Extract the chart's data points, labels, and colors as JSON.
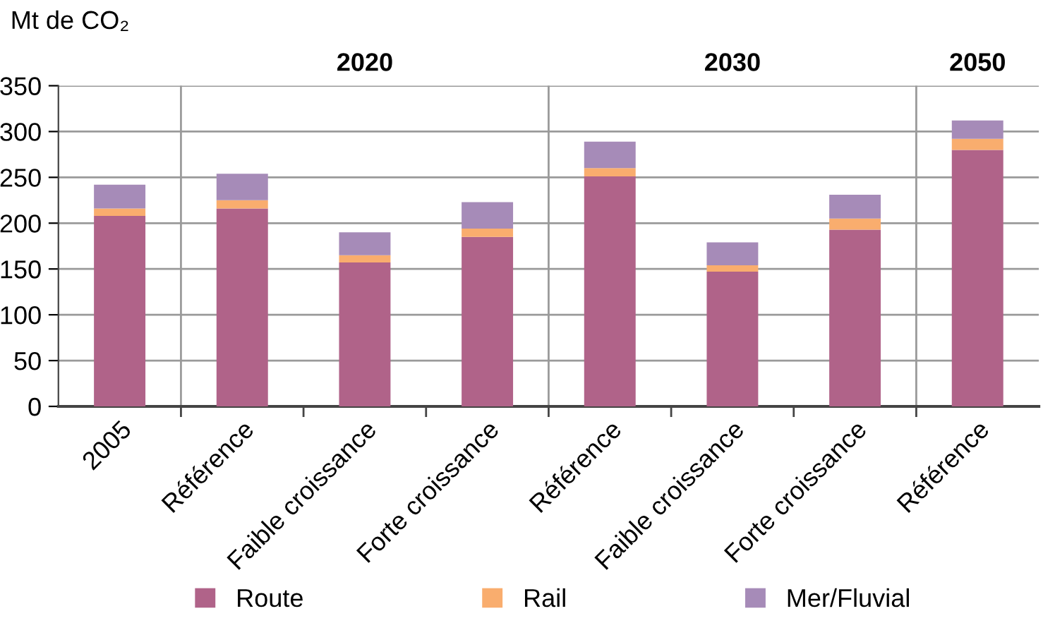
{
  "chart_data": {
    "type": "bar",
    "stacked": true,
    "ylabel": "Mt de CO₂",
    "categories": [
      "2005",
      "Référence",
      "Faible croissance",
      "Forte croissance",
      "Référence",
      "Faible croissance",
      "Forte croissance",
      "Référence"
    ],
    "series": [
      {
        "name": "Route",
        "color": "#b06389",
        "values": [
          208,
          216,
          157,
          185,
          251,
          147,
          193,
          280
        ]
      },
      {
        "name": "Rail",
        "color": "#f9ad6e",
        "values": [
          8,
          9,
          8,
          9,
          9,
          7,
          12,
          12
        ]
      },
      {
        "name": "Mer/Fluvial",
        "color": "#a68bb8",
        "values": [
          26,
          29,
          25,
          29,
          29,
          25,
          26,
          20
        ]
      }
    ],
    "annotations": [
      "2020",
      "2030",
      "2050"
    ],
    "ylim": [
      0,
      350
    ],
    "yticks": [
      0,
      50,
      100,
      150,
      200,
      250,
      300,
      350
    ],
    "grid": "y",
    "legend": "bottom"
  }
}
